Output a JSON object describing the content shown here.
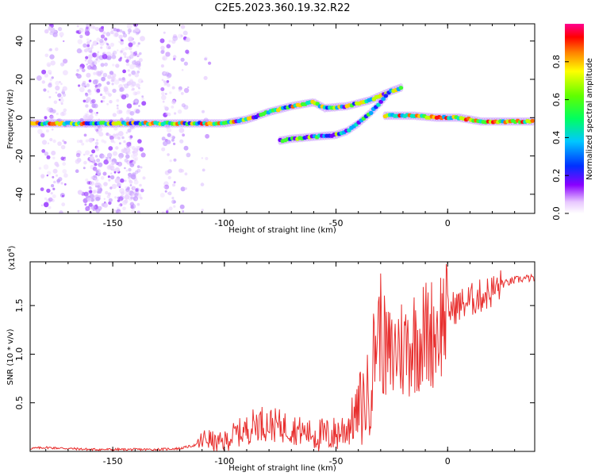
{
  "title": "C2E5.2023.360.19.32.R22",
  "chart_data": [
    {
      "type": "heatmap",
      "xlabel": "Height of straight line (km)",
      "ylabel": "Frequency (Hz)",
      "xlim": [
        -187,
        39
      ],
      "ylim": [
        -50,
        49
      ],
      "xticks": [
        -150,
        -100,
        -50,
        0
      ],
      "yticks": [
        -40,
        -20,
        0,
        20,
        40
      ],
      "colorbar": {
        "label": "Normalized spectral amplitude",
        "range": [
          0,
          1
        ],
        "ticks": [
          "0.0",
          "0.2",
          "0.4",
          "0.6",
          "0.8"
        ],
        "tick_values": [
          0.0,
          0.2,
          0.4,
          0.6,
          0.8
        ]
      },
      "features": [
        {
          "name": "main-track",
          "points": [
            [
              -187,
              -3
            ],
            [
              -150,
              -3
            ],
            [
              -120,
              -3
            ],
            [
              -100,
              -3
            ],
            [
              -90,
              -1
            ],
            [
              -80,
              3
            ],
            [
              -70,
              6
            ],
            [
              -60,
              8
            ],
            [
              -55,
              5
            ],
            [
              -45,
              6
            ],
            [
              -35,
              9
            ],
            [
              -25,
              14
            ],
            [
              -20,
              16
            ]
          ]
        },
        {
          "name": "lower-branch",
          "points": [
            [
              -75,
              -12
            ],
            [
              -70,
              -11
            ],
            [
              -60,
              -10
            ],
            [
              -50,
              -9
            ],
            [
              -45,
              -7
            ],
            [
              -40,
              -3
            ],
            [
              -35,
              2
            ],
            [
              -30,
              8
            ],
            [
              -27,
              12
            ]
          ]
        },
        {
          "name": "right-track",
          "points": [
            [
              -28,
              1
            ],
            [
              -15,
              1
            ],
            [
              -5,
              0
            ],
            [
              5,
              0
            ],
            [
              15,
              -2
            ],
            [
              25,
              -2
            ],
            [
              39,
              -2
            ]
          ]
        }
      ]
    },
    {
      "type": "line",
      "xlabel": "Height of straight line (km)",
      "ylabel": "SNR (10 * v/v)",
      "multiplier_label": "(x10",
      "multiplier_exp": "4",
      "multiplier_close": ")",
      "xlim": [
        -187,
        39
      ],
      "ylim": [
        0,
        1.95
      ],
      "xticks": [
        -150,
        -100,
        -50,
        0
      ],
      "yticks": [
        0.5,
        1.0,
        1.5
      ],
      "ytick_labels": [
        "0.5",
        "1.0",
        "1.5"
      ],
      "series": [
        {
          "color": "#e8302f",
          "x": [
            -187,
            -180,
            -170,
            -160,
            -150,
            -140,
            -130,
            -120,
            -112,
            -108,
            -104,
            -100,
            -95,
            -90,
            -85,
            -80,
            -75,
            -70,
            -65,
            -60,
            -55,
            -50,
            -45,
            -40,
            -35,
            -32,
            -30,
            -28,
            -25,
            -22,
            -20,
            -15,
            -10,
            -5,
            0,
            5,
            10,
            15,
            20,
            25,
            30,
            35,
            39
          ],
          "y": [
            0.03,
            0.04,
            0.03,
            0.02,
            0.02,
            0.02,
            0.02,
            0.03,
            0.07,
            0.14,
            0.08,
            0.1,
            0.18,
            0.22,
            0.3,
            0.28,
            0.26,
            0.24,
            0.2,
            0.18,
            0.16,
            0.18,
            0.25,
            0.4,
            0.6,
            1.2,
            1.3,
            1.0,
            0.95,
            1.1,
            1.05,
            1.15,
            1.2,
            1.25,
            1.45,
            1.5,
            1.55,
            1.6,
            1.65,
            1.72,
            1.76,
            1.78,
            1.78
          ]
        }
      ]
    }
  ]
}
